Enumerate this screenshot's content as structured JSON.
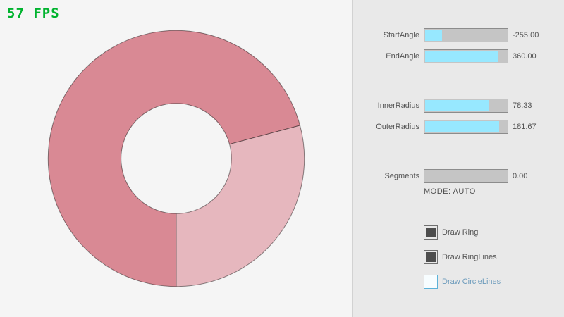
{
  "fps": {
    "label": "57 FPS",
    "color": "#00B32E"
  },
  "ring": {
    "fill_dark": "#D98994",
    "fill_light": "#E6B7BE",
    "stroke": "rgba(0,0,0,0.45)"
  },
  "panel": {
    "sliders": [
      {
        "name": "StartAngle",
        "value": "-255.00",
        "fill_pct": 21.7
      },
      {
        "name": "EndAngle",
        "value": "360.00",
        "fill_pct": 90.0
      },
      {
        "name": "InnerRadius",
        "value": "78.33",
        "fill_pct": 78.3
      },
      {
        "name": "OuterRadius",
        "value": "181.67",
        "fill_pct": 90.8
      },
      {
        "name": "Segments",
        "value": "0.00",
        "fill_pct": 0.0
      }
    ],
    "mode_text": "MODE: AUTO",
    "checkboxes": [
      {
        "label": "Draw Ring",
        "checked": true,
        "accent": false
      },
      {
        "label": "Draw RingLines",
        "checked": true,
        "accent": false
      },
      {
        "label": "Draw CircleLines",
        "checked": false,
        "accent": true
      }
    ]
  }
}
